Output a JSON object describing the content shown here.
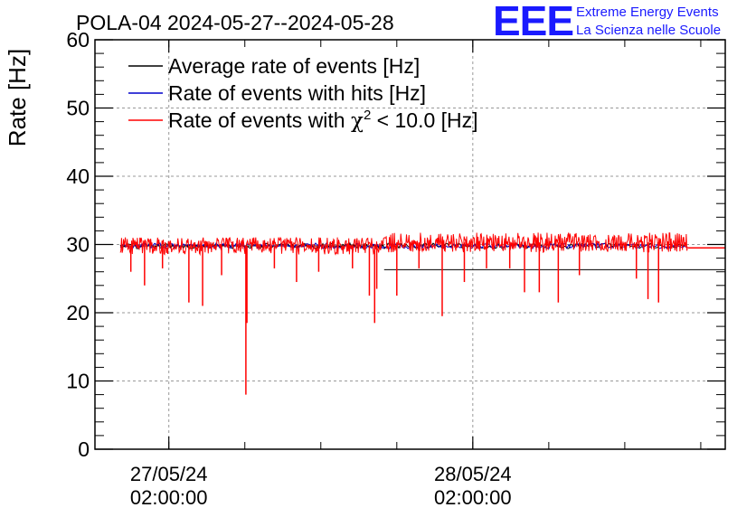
{
  "chart_data": {
    "type": "line",
    "title": "POLA-04 2024-05-27--2024-05-28",
    "xlabel": "",
    "ylabel": "Rate [Hz]",
    "ylim": [
      0,
      60
    ],
    "yticks": [
      0,
      10,
      20,
      30,
      40,
      50,
      60
    ],
    "xlim": [
      "2024-05-26 20:10",
      "2024-05-28 21:56"
    ],
    "xtick_labels": [
      {
        "date": "27/05/24",
        "time": "02:00:00",
        "x": "2024-05-27 02:00"
      },
      {
        "date": "28/05/24",
        "time": "02:00:00",
        "x": "2024-05-28 02:00"
      }
    ],
    "grid": true,
    "legend": {
      "placement": "top-left",
      "entries": [
        {
          "label": "Average rate of events [Hz]",
          "color": "#000000"
        },
        {
          "label": "Rate of events with hits [Hz]",
          "color": "#0000cc"
        },
        {
          "label_prefix": "Rate of events with ",
          "label_symbol": "χ",
          "label_sup": "2",
          "label_suffix": " < 10.0 [Hz]",
          "color": "#ff0000"
        }
      ]
    },
    "series": [
      {
        "name": "Average rate of events [Hz]",
        "color": "#000000",
        "mean_level": 29.8,
        "segments": [
          {
            "x_start": "2024-05-26 22:10",
            "x_end": "2024-05-27 19:00",
            "value": 29.8
          },
          {
            "x_start": "2024-05-27 19:00",
            "x_end": "2024-05-28 21:56",
            "value": 26.3
          }
        ]
      },
      {
        "name": "Rate of events with hits [Hz]",
        "color": "#0000cc",
        "mean_level": 29.8
      },
      {
        "name": "Rate of events with χ2 < 10.0 [Hz]",
        "color": "#ff0000",
        "first_half": {
          "x_start": "2024-05-26 22:10",
          "x_end": "2024-05-27 19:10",
          "mean": 29.8,
          "noise": 0.7
        },
        "second_half": {
          "x_start": "2024-05-27 19:10",
          "x_end": "2024-05-28 19:00",
          "mean": 30.3,
          "noise": 0.8
        },
        "tail_level": 29.5,
        "tail_x_end": "2024-05-28 21:56",
        "dips": [
          {
            "x": "2024-05-26 23:00",
            "value": 26.0
          },
          {
            "x": "2024-05-27 00:05",
            "value": 24.0
          },
          {
            "x": "2024-05-27 01:30",
            "value": 26.5
          },
          {
            "x": "2024-05-27 03:35",
            "value": 21.5
          },
          {
            "x": "2024-05-27 04:40",
            "value": 21.0
          },
          {
            "x": "2024-05-27 06:10",
            "value": 25.5
          },
          {
            "x": "2024-05-27 08:05",
            "value": 8.0
          },
          {
            "x": "2024-05-27 08:10",
            "value": 18.5
          },
          {
            "x": "2024-05-27 10:20",
            "value": 26.5
          },
          {
            "x": "2024-05-27 12:05",
            "value": 24.5
          },
          {
            "x": "2024-05-27 13:50",
            "value": 26.0
          },
          {
            "x": "2024-05-27 16:30",
            "value": 26.5
          },
          {
            "x": "2024-05-27 17:50",
            "value": 22.5
          },
          {
            "x": "2024-05-27 18:15",
            "value": 18.5
          },
          {
            "x": "2024-05-27 18:25",
            "value": 23.5
          },
          {
            "x": "2024-05-27 20:00",
            "value": 22.5
          },
          {
            "x": "2024-05-27 21:45",
            "value": 26.5
          },
          {
            "x": "2024-05-27 23:35",
            "value": 19.5
          },
          {
            "x": "2024-05-28 01:20",
            "value": 24.5
          },
          {
            "x": "2024-05-28 03:05",
            "value": 26.5
          },
          {
            "x": "2024-05-28 04:55",
            "value": 26.5
          },
          {
            "x": "2024-05-28 06:05",
            "value": 23.0
          },
          {
            "x": "2024-05-28 07:15",
            "value": 23.0
          },
          {
            "x": "2024-05-28 08:45",
            "value": 21.5
          },
          {
            "x": "2024-05-28 10:25",
            "value": 25.5
          },
          {
            "x": "2024-05-28 14:55",
            "value": 25.0
          },
          {
            "x": "2024-05-28 15:50",
            "value": 22.0
          },
          {
            "x": "2024-05-28 16:40",
            "value": 21.5
          }
        ]
      }
    ]
  },
  "logo": {
    "mark": "EEE",
    "line1": "Extreme Energy Events",
    "line2": "La Scienza nelle Scuole"
  }
}
